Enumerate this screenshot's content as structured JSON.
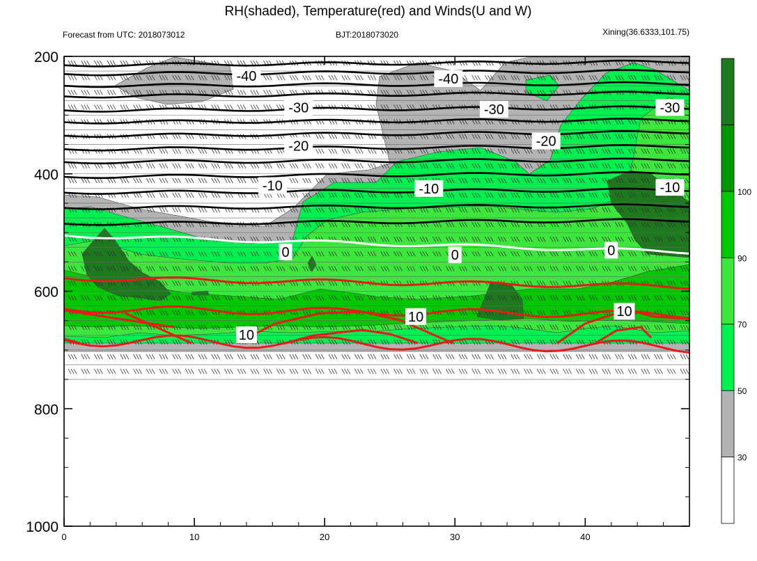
{
  "chart_data": {
    "type": "contour",
    "title": "RH(shaded), Temperature(red) and Winds(U and W)",
    "subtitle_left": "Forecast from UTC: 2018073012",
    "subtitle_center": "BJT:2018073020",
    "subtitle_right": "Xining(36.6333,101.75)",
    "x_range": [
      0,
      48
    ],
    "y_range": [
      200,
      1000
    ],
    "y_reversed": true,
    "x_ticks": [
      "0",
      "10",
      "20",
      "30",
      "40"
    ],
    "y_ticks": [
      "200",
      "400",
      "600",
      "800",
      "1000"
    ],
    "colorbar": {
      "levels": [
        "30",
        "50",
        "70",
        "90",
        "100"
      ],
      "colors": [
        "#ffffff",
        "#b3b3b3",
        "#00f050",
        "#3ce63c",
        "#00c800",
        "#009600",
        "#1e781e"
      ]
    },
    "surface_pressure_approx": 760,
    "temperature_contours": [
      {
        "label": "-40",
        "color": "#000000",
        "pressure_left": 255,
        "pressure_right": 250,
        "label_x": 14,
        "label_p": 233
      },
      {
        "label": "-40",
        "color": "#000000",
        "pressure_left": 255,
        "pressure_right": 250,
        "label_x": 29.5,
        "label_p": 238
      },
      {
        "label": "-30",
        "color": "#000000",
        "pressure_left": 295,
        "pressure_right": 285,
        "label_x": 18,
        "label_p": 287
      },
      {
        "label": "-30",
        "color": "#000000",
        "pressure_left": 295,
        "pressure_right": 285,
        "label_x": 33,
        "label_p": 290
      },
      {
        "label": "-30",
        "color": "#000000",
        "pressure_left": 295,
        "pressure_right": 285,
        "label_x": 46.5,
        "label_p": 287
      },
      {
        "label": "-20",
        "color": "#000000",
        "pressure_left": 340,
        "pressure_right": 335,
        "label_x": 18,
        "label_p": 352
      },
      {
        "label": "-20",
        "color": "#000000",
        "pressure_left": 340,
        "pressure_right": 335,
        "label_x": 37,
        "label_p": 344
      },
      {
        "label": "-10",
        "color": "#000000",
        "pressure_left": 435,
        "pressure_right": 425,
        "label_x": 16,
        "label_p": 420
      },
      {
        "label": "-10",
        "color": "#000000",
        "pressure_left": 435,
        "pressure_right": 425,
        "label_x": 28,
        "label_p": 425
      },
      {
        "label": "-10",
        "color": "#000000",
        "pressure_left": 435,
        "pressure_right": 425,
        "label_x": 46.5,
        "label_p": 423
      },
      {
        "label": "0",
        "color": "#ffffff",
        "pressure_left": 505,
        "pressure_right": 535,
        "label_x": 17,
        "label_p": 533
      },
      {
        "label": "0",
        "color": "#ffffff",
        "pressure_left": 505,
        "pressure_right": 535,
        "label_x": 30,
        "label_p": 538
      },
      {
        "label": "0",
        "color": "#ffffff",
        "pressure_left": 505,
        "pressure_right": 535,
        "label_x": 42,
        "label_p": 530
      },
      {
        "label": "10",
        "color": "#e81a1a",
        "pressure_left": 630,
        "pressure_right": 640,
        "label_x": 14,
        "label_p": 674
      },
      {
        "label": "10",
        "color": "#e81a1a",
        "pressure_left": 630,
        "pressure_right": 640,
        "label_x": 27,
        "label_p": 643
      },
      {
        "label": "10",
        "color": "#e81a1a",
        "pressure_left": 630,
        "pressure_right": 640,
        "label_x": 43,
        "label_p": 634
      }
    ]
  }
}
